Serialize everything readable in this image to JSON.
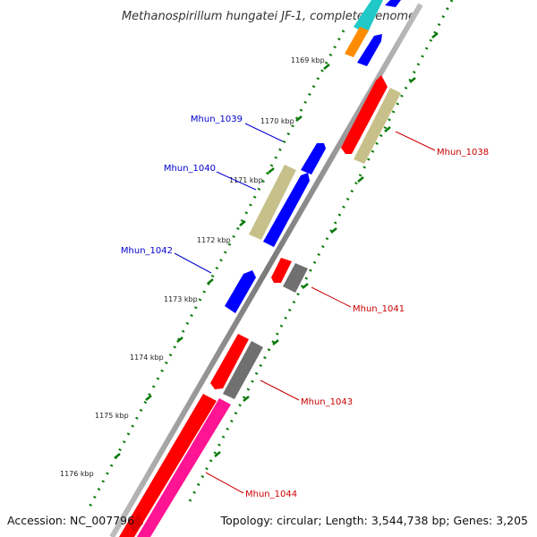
{
  "header": {
    "title": "Methanospirillum hungatei JF-1, complete genome"
  },
  "footer": {
    "accession": "Accession: NC_007796",
    "summary": "Topology: circular; Length: 3,544,738 bp; Genes: 3,205"
  },
  "scale_labels": [
    "1169 kbp",
    "1170 kbp",
    "1171 kbp",
    "1172 kbp",
    "1173 kbp",
    "1174 kbp",
    "1175 kbp",
    "1176 kbp"
  ],
  "gene_labels": [
    {
      "name": "Mhun_1039",
      "color": "#0000cc"
    },
    {
      "name": "Mhun_1040",
      "color": "#0000cc"
    },
    {
      "name": "Mhun_1042",
      "color": "#0000cc"
    },
    {
      "name": "Mhun_1038",
      "color": "#cc0000"
    },
    {
      "name": "Mhun_1041",
      "color": "#cc0000"
    },
    {
      "name": "Mhun_1043",
      "color": "#cc0000"
    },
    {
      "name": "Mhun_1044",
      "color": "#cc0000"
    }
  ],
  "colors": {
    "forward_cds": "#ff0000",
    "reverse_cds": "#0000ff",
    "feature_tan": "#c8c08a",
    "feature_gray": "#707070",
    "feature_pink": "#ff1493",
    "feature_orange": "#ff8c00",
    "feature_cyan": "#20c8c8",
    "backbone": "#8c8c8c",
    "tick_green": "#0a7a0a"
  }
}
